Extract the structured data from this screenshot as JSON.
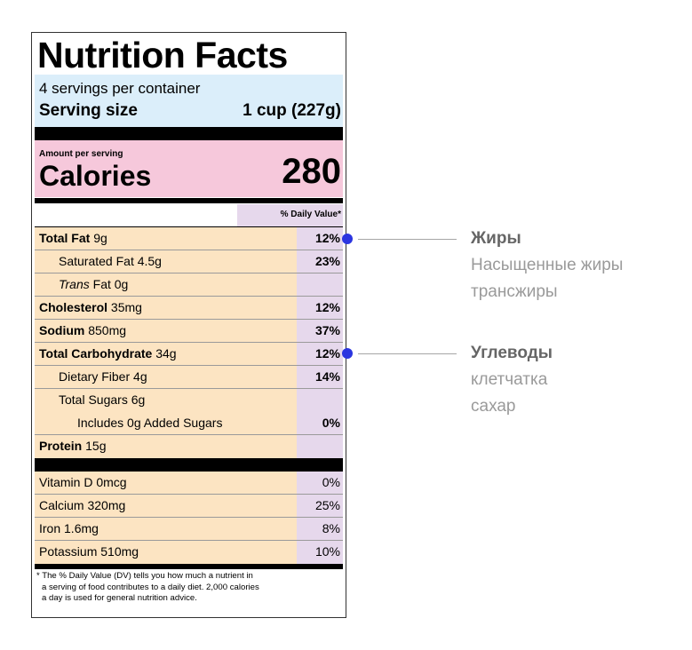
{
  "label": {
    "title": "Nutrition Facts",
    "servings_per_container": "4 servings per container",
    "serving_size_label": "Serving size",
    "serving_size_value": "1 cup (227g)",
    "amount_per_serving": "Amount per serving",
    "calories_label": "Calories",
    "calories_value": "280",
    "daily_value_header": "% Daily Value*",
    "nutrients": [
      {
        "name": "Total Fat",
        "amount": "9g",
        "dv": "12%"
      },
      {
        "name": "Saturated Fat",
        "amount": "4.5g",
        "dv": "23%"
      },
      {
        "name_italic": "Trans",
        "name": "Fat",
        "amount": "0g",
        "dv": ""
      },
      {
        "name": "Cholesterol",
        "amount": "35mg",
        "dv": "12%"
      },
      {
        "name": "Sodium",
        "amount": "850mg",
        "dv": "37%"
      },
      {
        "name": "Total Carbohydrate",
        "amount": "34g",
        "dv": "12%"
      },
      {
        "name": "Dietary Fiber",
        "amount": "4g",
        "dv": "14%"
      },
      {
        "name": "Total Sugars",
        "amount": "6g",
        "dv": ""
      },
      {
        "name": "Includes 0g Added Sugars",
        "amount": "",
        "dv": "0%"
      },
      {
        "name": "Protein",
        "amount": "15g",
        "dv": ""
      }
    ],
    "vitamins": [
      {
        "name": "Vitamin D",
        "amount": "0mcg",
        "dv": "0%"
      },
      {
        "name": "Calcium",
        "amount": "320mg",
        "dv": "25%"
      },
      {
        "name": "Iron",
        "amount": "1.6mg",
        "dv": "8%"
      },
      {
        "name": "Potassium",
        "amount": "510mg",
        "dv": "10%"
      }
    ],
    "footnote_lines": [
      "* The % Daily Value (DV) tells you how much a nutrient in",
      "a serving of food contributes to a daily diet. 2,000 calories",
      "a day is used for general nutrition advice."
    ]
  },
  "annotations": {
    "fats": {
      "heading": "Жиры",
      "items": [
        "Насыщенные жиры",
        "трансжиры"
      ]
    },
    "carbs": {
      "heading": "Углеводы",
      "items": [
        "клетчатка",
        "сахар"
      ]
    }
  },
  "colors": {
    "serving_bg": "#dbeefa",
    "calories_bg": "#f6c8db",
    "nutrient_bg": "#fce4c2",
    "dv_bg": "#e6d8ec",
    "marker": "#2b35e0"
  }
}
